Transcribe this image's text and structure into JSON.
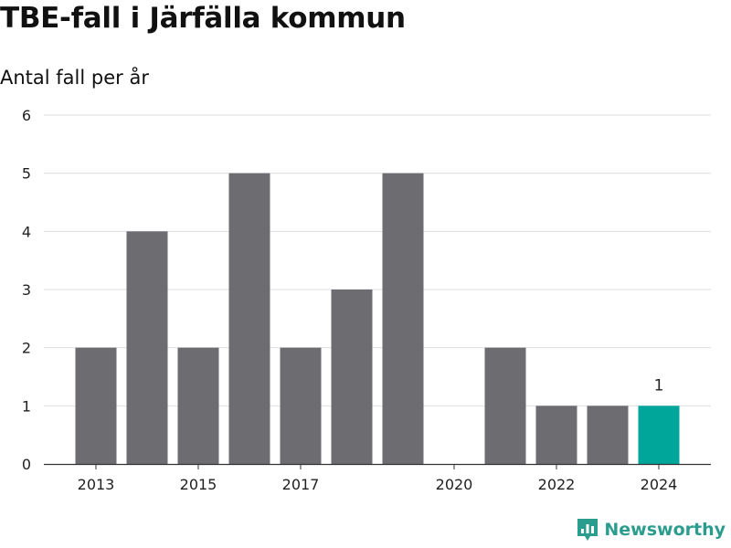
{
  "header": {
    "title": "TBE-fall i Järfälla kommun",
    "subtitle": "Antal fall per år"
  },
  "brand": {
    "name": "Newsworthy",
    "logo_icon": "bar-chart-pin-logo-icon",
    "color": "#2a9d8f"
  },
  "chart_data": {
    "type": "bar",
    "title": "TBE-fall i Järfälla kommun",
    "subtitle": "Antal fall per år",
    "xlabel": "",
    "ylabel": "",
    "categories": [
      "2013",
      "2014",
      "2015",
      "2016",
      "2017",
      "2018",
      "2019",
      "2020",
      "2021",
      "2022",
      "2023",
      "2024"
    ],
    "values": [
      2,
      4,
      2,
      5,
      2,
      3,
      5,
      0,
      2,
      1,
      1,
      1
    ],
    "x_tick_labels": [
      "2013",
      "2015",
      "2017",
      "2020",
      "2022",
      "2024"
    ],
    "y_ticks": [
      "0",
      "1",
      "2",
      "3",
      "4",
      "5",
      "6"
    ],
    "ylim": [
      0,
      6
    ],
    "grid": true,
    "highlight": {
      "category": "2024",
      "label": "1"
    },
    "colors": {
      "bar": "#6d6c71",
      "highlight": "#00a699",
      "grid": "#dddddd",
      "axis": "#333333",
      "text": "#222222"
    }
  }
}
